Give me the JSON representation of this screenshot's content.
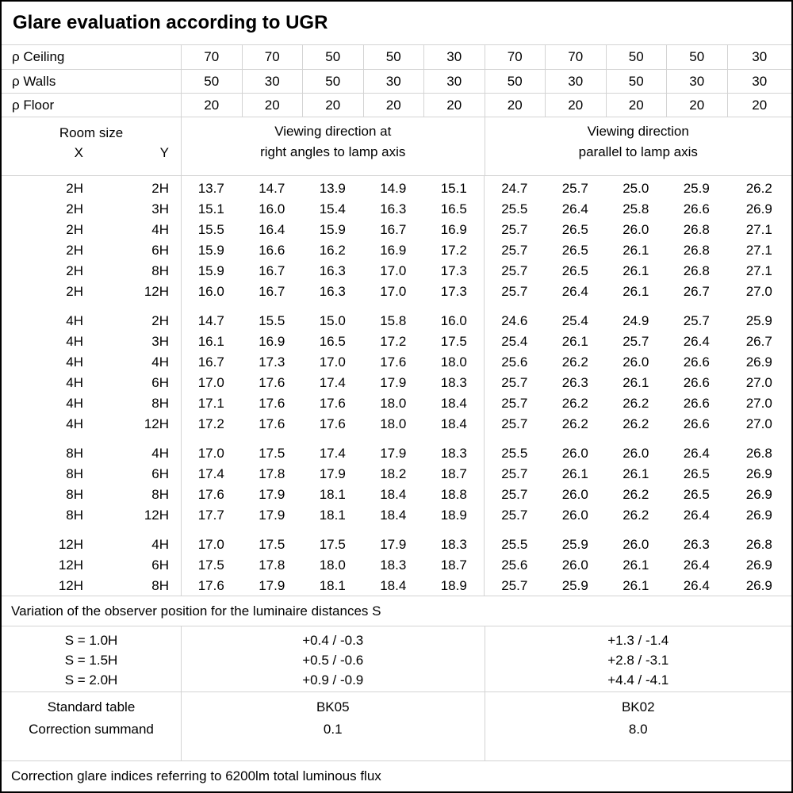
{
  "title": "Glare evaluation according to UGR",
  "reflectance": {
    "rows": [
      {
        "label": "ρ Ceiling",
        "values": [
          "70",
          "70",
          "50",
          "50",
          "30",
          "70",
          "70",
          "50",
          "50",
          "30"
        ]
      },
      {
        "label": "ρ Walls",
        "values": [
          "50",
          "30",
          "50",
          "30",
          "30",
          "50",
          "30",
          "50",
          "30",
          "30"
        ]
      },
      {
        "label": "ρ Floor",
        "values": [
          "20",
          "20",
          "20",
          "20",
          "20",
          "20",
          "20",
          "20",
          "20",
          "20"
        ]
      }
    ]
  },
  "header": {
    "room_size": "Room size",
    "x_label": "X",
    "y_label": "Y",
    "group_right_angles": [
      "Viewing direction at",
      "right angles to lamp axis"
    ],
    "group_parallel": [
      "Viewing direction",
      "parallel to lamp axis"
    ]
  },
  "ugr_rows": [
    {
      "x": "2H",
      "y": "2H",
      "v": [
        "13.7",
        "14.7",
        "13.9",
        "14.9",
        "15.1",
        "24.7",
        "25.7",
        "25.0",
        "25.9",
        "26.2"
      ]
    },
    {
      "x": "2H",
      "y": "3H",
      "v": [
        "15.1",
        "16.0",
        "15.4",
        "16.3",
        "16.5",
        "25.5",
        "26.4",
        "25.8",
        "26.6",
        "26.9"
      ]
    },
    {
      "x": "2H",
      "y": "4H",
      "v": [
        "15.5",
        "16.4",
        "15.9",
        "16.7",
        "16.9",
        "25.7",
        "26.5",
        "26.0",
        "26.8",
        "27.1"
      ]
    },
    {
      "x": "2H",
      "y": "6H",
      "v": [
        "15.9",
        "16.6",
        "16.2",
        "16.9",
        "17.2",
        "25.7",
        "26.5",
        "26.1",
        "26.8",
        "27.1"
      ]
    },
    {
      "x": "2H",
      "y": "8H",
      "v": [
        "15.9",
        "16.7",
        "16.3",
        "17.0",
        "17.3",
        "25.7",
        "26.5",
        "26.1",
        "26.8",
        "27.1"
      ]
    },
    {
      "x": "2H",
      "y": "12H",
      "v": [
        "16.0",
        "16.7",
        "16.3",
        "17.0",
        "17.3",
        "25.7",
        "26.4",
        "26.1",
        "26.7",
        "27.0"
      ]
    },
    {
      "x": "4H",
      "y": "2H",
      "v": [
        "14.7",
        "15.5",
        "15.0",
        "15.8",
        "16.0",
        "24.6",
        "25.4",
        "24.9",
        "25.7",
        "25.9"
      ],
      "gap": true
    },
    {
      "x": "4H",
      "y": "3H",
      "v": [
        "16.1",
        "16.9",
        "16.5",
        "17.2",
        "17.5",
        "25.4",
        "26.1",
        "25.7",
        "26.4",
        "26.7"
      ]
    },
    {
      "x": "4H",
      "y": "4H",
      "v": [
        "16.7",
        "17.3",
        "17.0",
        "17.6",
        "18.0",
        "25.6",
        "26.2",
        "26.0",
        "26.6",
        "26.9"
      ]
    },
    {
      "x": "4H",
      "y": "6H",
      "v": [
        "17.0",
        "17.6",
        "17.4",
        "17.9",
        "18.3",
        "25.7",
        "26.3",
        "26.1",
        "26.6",
        "27.0"
      ]
    },
    {
      "x": "4H",
      "y": "8H",
      "v": [
        "17.1",
        "17.6",
        "17.6",
        "18.0",
        "18.4",
        "25.7",
        "26.2",
        "26.2",
        "26.6",
        "27.0"
      ]
    },
    {
      "x": "4H",
      "y": "12H",
      "v": [
        "17.2",
        "17.6",
        "17.6",
        "18.0",
        "18.4",
        "25.7",
        "26.2",
        "26.2",
        "26.6",
        "27.0"
      ]
    },
    {
      "x": "8H",
      "y": "4H",
      "v": [
        "17.0",
        "17.5",
        "17.4",
        "17.9",
        "18.3",
        "25.5",
        "26.0",
        "26.0",
        "26.4",
        "26.8"
      ],
      "gap": true
    },
    {
      "x": "8H",
      "y": "6H",
      "v": [
        "17.4",
        "17.8",
        "17.9",
        "18.2",
        "18.7",
        "25.7",
        "26.1",
        "26.1",
        "26.5",
        "26.9"
      ]
    },
    {
      "x": "8H",
      "y": "8H",
      "v": [
        "17.6",
        "17.9",
        "18.1",
        "18.4",
        "18.8",
        "25.7",
        "26.0",
        "26.2",
        "26.5",
        "26.9"
      ]
    },
    {
      "x": "8H",
      "y": "12H",
      "v": [
        "17.7",
        "17.9",
        "18.1",
        "18.4",
        "18.9",
        "25.7",
        "26.0",
        "26.2",
        "26.4",
        "26.9"
      ]
    },
    {
      "x": "12H",
      "y": "4H",
      "v": [
        "17.0",
        "17.5",
        "17.5",
        "17.9",
        "18.3",
        "25.5",
        "25.9",
        "26.0",
        "26.3",
        "26.8"
      ],
      "gap": true
    },
    {
      "x": "12H",
      "y": "6H",
      "v": [
        "17.5",
        "17.8",
        "18.0",
        "18.3",
        "18.7",
        "25.6",
        "26.0",
        "26.1",
        "26.4",
        "26.9"
      ]
    },
    {
      "x": "12H",
      "y": "8H",
      "v": [
        "17.6",
        "17.9",
        "18.1",
        "18.4",
        "18.9",
        "25.7",
        "25.9",
        "26.1",
        "26.4",
        "26.9"
      ]
    }
  ],
  "variation_note": "Variation of the observer position for the luminaire distances S",
  "s_table": {
    "rows": [
      {
        "label": "S = 1.0H",
        "right_angles": "+0.4 / -0.3",
        "parallel": "+1.3 / -1.4"
      },
      {
        "label": "S = 1.5H",
        "right_angles": "+0.5 / -0.6",
        "parallel": "+2.8 / -3.1"
      },
      {
        "label": "S = 2.0H",
        "right_angles": "+0.9 / -0.9",
        "parallel": "+4.4 / -4.1"
      }
    ]
  },
  "standard": {
    "rows": [
      {
        "label": "Standard table",
        "right_angles": "BK05",
        "parallel": "BK02"
      },
      {
        "label": "Correction summand",
        "right_angles": "0.1",
        "parallel": "8.0"
      }
    ]
  },
  "footer_note": "Correction glare indices referring to 6200lm total luminous flux",
  "colors": {
    "grid_line": "#d3d3d3",
    "border": "#000000",
    "text": "#000000",
    "background": "#ffffff"
  }
}
